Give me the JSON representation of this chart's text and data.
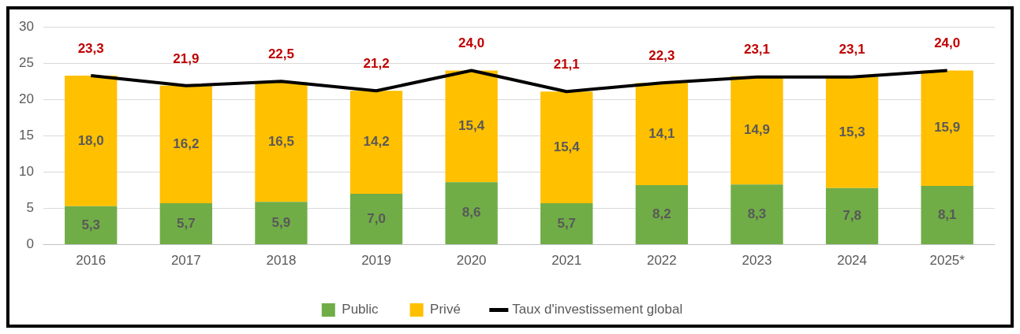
{
  "chart_data": {
    "type": "bar",
    "stacked": true,
    "categories": [
      "2016",
      "2017",
      "2018",
      "2019",
      "2020",
      "2021",
      "2022",
      "2023",
      "2024",
      "2025*"
    ],
    "series": [
      {
        "name": "Public",
        "color": "#70ad47",
        "values": [
          5.3,
          5.7,
          5.9,
          7.0,
          8.6,
          5.7,
          8.2,
          8.3,
          7.8,
          8.1
        ],
        "value_labels": [
          "5,3",
          "5,7",
          "5,9",
          "7,0",
          "8,6",
          "5,7",
          "8,2",
          "8,3",
          "7,8",
          "8,1"
        ]
      },
      {
        "name": "Privé",
        "color": "#ffc000",
        "values": [
          18.0,
          16.2,
          16.5,
          14.2,
          15.4,
          15.4,
          14.1,
          14.9,
          15.3,
          15.9
        ],
        "value_labels": [
          "18,0",
          "16,2",
          "16,5",
          "14,2",
          "15,4",
          "15,4",
          "14,1",
          "14,9",
          "15,3",
          "15,9"
        ]
      },
      {
        "name": "Taux d'investissement global",
        "type": "line",
        "color": "#000000",
        "marker": "none",
        "values": [
          23.3,
          21.9,
          22.5,
          21.2,
          24.0,
          21.1,
          22.3,
          23.1,
          23.1,
          24.0
        ],
        "value_labels": [
          "23,3",
          "21,9",
          "22,5",
          "21,2",
          "24,0",
          "21,1",
          "22,3",
          "23,1",
          "23,1",
          "24,0"
        ]
      }
    ],
    "ylim": [
      0,
      30
    ],
    "yticks": [
      0,
      5,
      10,
      15,
      20,
      25,
      30
    ],
    "grid": "y",
    "legend": "bottom"
  }
}
